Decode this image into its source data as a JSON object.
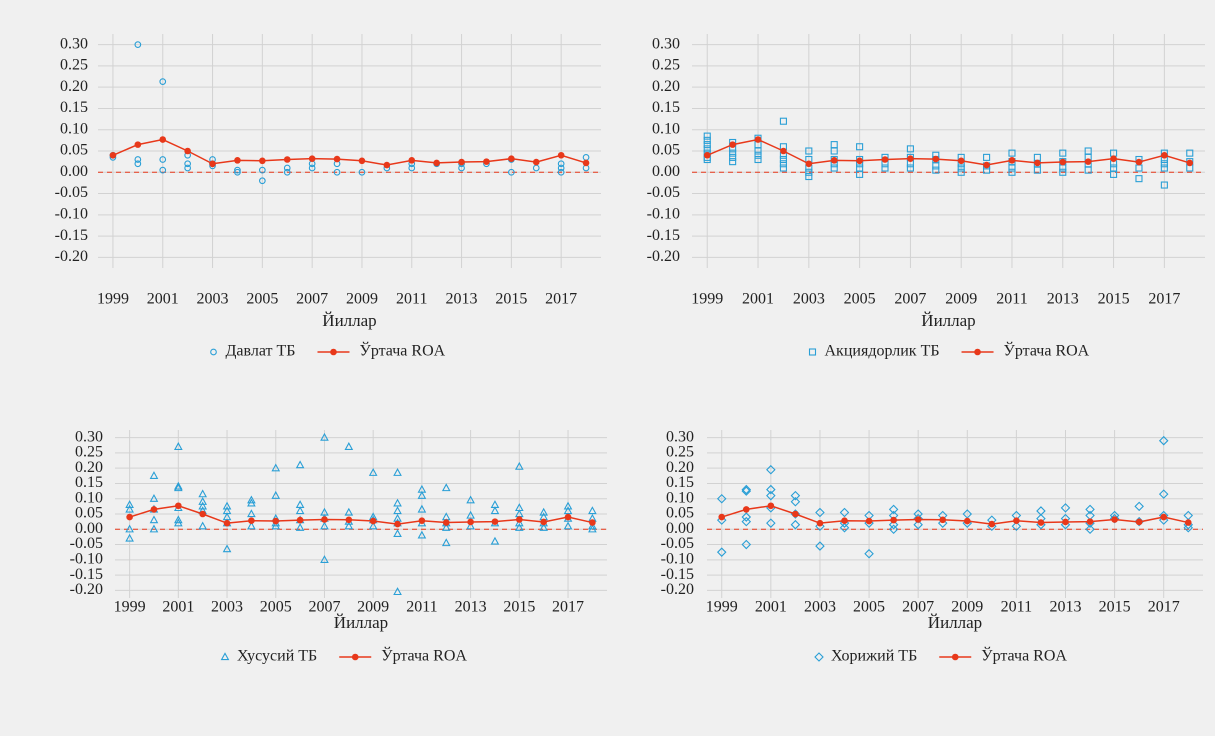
{
  "chart_data": [
    {
      "type": "scatter",
      "xlabel": "Йиллар",
      "legend": "bottom",
      "grid": true,
      "hline": 0,
      "xlim": [
        1998.4,
        2018.6
      ],
      "ylim": [
        -0.225,
        0.325
      ],
      "xticks": [
        1999,
        2001,
        2003,
        2005,
        2007,
        2009,
        2011,
        2013,
        2015,
        2017
      ],
      "yticks": [
        {
          "value": 0.3,
          "label": "0.30"
        },
        {
          "value": 0.25,
          "label": "0.25"
        },
        {
          "value": 0.2,
          "label": "0.20"
        },
        {
          "value": 0.15,
          "label": "0.15"
        },
        {
          "value": 0.1,
          "label": "0.10"
        },
        {
          "value": 0.05,
          "label": "0.05"
        },
        {
          "value": 0,
          "label": "0.00"
        },
        {
          "value": -0.05,
          "label": "-0.05"
        },
        {
          "value": -0.1,
          "label": "-0.10"
        },
        {
          "value": -0.15,
          "label": "-0.15"
        },
        {
          "value": -0.2,
          "label": "-0.20"
        }
      ],
      "series": [
        {
          "name": "Давлат ТБ",
          "type": "scatter",
          "marker": "circle",
          "color": "#2a9fd6",
          "x": [
            1999,
            1999,
            2000,
            2000,
            2000,
            2001,
            2001,
            2001,
            2002,
            2002,
            2002,
            2003,
            2003,
            2003,
            2004,
            2004,
            2005,
            2005,
            2006,
            2006,
            2007,
            2007,
            2008,
            2008,
            2009,
            2010,
            2011,
            2011,
            2012,
            2013,
            2013,
            2014,
            2015,
            2015,
            2016,
            2017,
            2017,
            2017,
            2018,
            2018
          ],
          "values": [
            0.035,
            0.04,
            0.3,
            0.03,
            0.02,
            0.213,
            0.03,
            0.005,
            0.04,
            0.02,
            0.01,
            0.03,
            0.02,
            0.015,
            0.005,
            0.0,
            0.005,
            -0.02,
            0.01,
            0.0,
            0.02,
            0.01,
            0.02,
            0.0,
            0.0,
            0.01,
            0.02,
            0.01,
            0.02,
            0.02,
            0.01,
            0.02,
            0.03,
            0.0,
            0.01,
            0.02,
            0.01,
            0.0,
            0.035,
            0.01
          ]
        },
        {
          "name": "Ўртача ROA",
          "type": "line",
          "color": "#e8381a",
          "x": [
            1999,
            2000,
            2001,
            2002,
            2003,
            2004,
            2005,
            2006,
            2007,
            2008,
            2009,
            2010,
            2011,
            2012,
            2013,
            2014,
            2015,
            2016,
            2017,
            2018
          ],
          "values": [
            0.04,
            0.065,
            0.077,
            0.05,
            0.02,
            0.028,
            0.027,
            0.03,
            0.032,
            0.031,
            0.027,
            0.017,
            0.028,
            0.022,
            0.024,
            0.025,
            0.032,
            0.024,
            0.04,
            0.022
          ]
        }
      ]
    },
    {
      "type": "scatter",
      "xlabel": "Йиллар",
      "legend": "bottom",
      "grid": true,
      "hline": 0,
      "xlim": [
        1998.4,
        2018.6
      ],
      "ylim": [
        -0.225,
        0.325
      ],
      "xticks": [
        1999,
        2001,
        2003,
        2005,
        2007,
        2009,
        2011,
        2013,
        2015,
        2017
      ],
      "yticks": [
        {
          "value": 0.3,
          "label": "0.30"
        },
        {
          "value": 0.25,
          "label": "0.25"
        },
        {
          "value": 0.2,
          "label": "0.20"
        },
        {
          "value": 0.15,
          "label": "0.15"
        },
        {
          "value": 0.1,
          "label": "0.10"
        },
        {
          "value": 0.05,
          "label": "0.05"
        },
        {
          "value": 0,
          "label": "0.00"
        },
        {
          "value": -0.05,
          "label": "-0.05"
        },
        {
          "value": -0.1,
          "label": "-0.10"
        },
        {
          "value": -0.15,
          "label": "-0.15"
        },
        {
          "value": -0.2,
          "label": "-0.20"
        }
      ],
      "series": [
        {
          "name": "Акциядорлик ТБ",
          "type": "scatter",
          "marker": "square",
          "color": "#2a9fd6",
          "x": [
            1999,
            1999,
            1999,
            1999,
            1999,
            1999,
            1999,
            2000,
            2000,
            2000,
            2000,
            2000,
            2001,
            2001,
            2001,
            2001,
            2001,
            2002,
            2002,
            2002,
            2002,
            2002,
            2002,
            2003,
            2003,
            2003,
            2003,
            2003,
            2004,
            2004,
            2004,
            2004,
            2004,
            2005,
            2005,
            2005,
            2005,
            2005,
            2006,
            2006,
            2006,
            2007,
            2007,
            2007,
            2007,
            2008,
            2008,
            2008,
            2008,
            2009,
            2009,
            2009,
            2009,
            2010,
            2010,
            2010,
            2011,
            2011,
            2011,
            2011,
            2012,
            2012,
            2012,
            2013,
            2013,
            2013,
            2013,
            2014,
            2014,
            2014,
            2014,
            2015,
            2015,
            2015,
            2015,
            2016,
            2016,
            2016,
            2017,
            2017,
            2017,
            2017,
            2017,
            2018,
            2018,
            2018
          ],
          "values": [
            0.085,
            0.075,
            0.065,
            0.055,
            0.045,
            0.035,
            0.03,
            0.07,
            0.055,
            0.045,
            0.035,
            0.025,
            0.08,
            0.065,
            0.05,
            0.04,
            0.03,
            0.12,
            0.06,
            0.04,
            0.03,
            0.02,
            0.01,
            0.05,
            0.03,
            0.01,
            0.0,
            -0.01,
            0.065,
            0.05,
            0.03,
            0.02,
            0.01,
            0.06,
            0.03,
            0.02,
            0.01,
            -0.005,
            0.035,
            0.02,
            0.01,
            0.055,
            0.035,
            0.02,
            0.01,
            0.04,
            0.03,
            0.015,
            0.005,
            0.035,
            0.02,
            0.01,
            0.0,
            0.035,
            0.015,
            0.005,
            0.045,
            0.025,
            0.01,
            0.0,
            0.035,
            0.02,
            0.005,
            0.045,
            0.025,
            0.01,
            0.0,
            0.05,
            0.035,
            0.02,
            0.005,
            0.045,
            0.02,
            0.01,
            -0.005,
            0.03,
            0.01,
            -0.015,
            0.045,
            0.03,
            0.02,
            0.01,
            -0.03,
            0.045,
            0.025,
            0.01
          ]
        },
        {
          "name": "Ўртача ROA",
          "type": "line",
          "color": "#e8381a",
          "x": [
            1999,
            2000,
            2001,
            2002,
            2003,
            2004,
            2005,
            2006,
            2007,
            2008,
            2009,
            2010,
            2011,
            2012,
            2013,
            2014,
            2015,
            2016,
            2017,
            2018
          ],
          "values": [
            0.04,
            0.065,
            0.077,
            0.05,
            0.02,
            0.028,
            0.027,
            0.03,
            0.032,
            0.031,
            0.027,
            0.017,
            0.028,
            0.022,
            0.024,
            0.025,
            0.032,
            0.024,
            0.04,
            0.022
          ]
        }
      ]
    },
    {
      "type": "scatter",
      "xlabel": "Йиллар",
      "legend": "bottom",
      "grid": true,
      "hline": 0,
      "xlim": [
        1998.4,
        2018.6
      ],
      "ylim": [
        -0.225,
        0.325
      ],
      "xticks": [
        1999,
        2001,
        2003,
        2005,
        2007,
        2009,
        2011,
        2013,
        2015,
        2017
      ],
      "yticks": [
        {
          "value": 0.3,
          "label": "0.30"
        },
        {
          "value": 0.25,
          "label": "0.25"
        },
        {
          "value": 0.2,
          "label": "0.20"
        },
        {
          "value": 0.15,
          "label": "0.15"
        },
        {
          "value": 0.1,
          "label": "0.10"
        },
        {
          "value": 0.05,
          "label": "0.05"
        },
        {
          "value": 0,
          "label": "0.00"
        },
        {
          "value": -0.05,
          "label": "-0.05"
        },
        {
          "value": -0.1,
          "label": "-0.10"
        },
        {
          "value": -0.15,
          "label": "-0.15"
        },
        {
          "value": -0.2,
          "label": "-0.20"
        }
      ],
      "series": [
        {
          "name": "Хусусий ТБ",
          "type": "scatter",
          "marker": "triangle",
          "color": "#2a9fd6",
          "x": [
            1999,
            1999,
            1999,
            1999,
            2000,
            2000,
            2000,
            2000,
            2000,
            2001,
            2001,
            2001,
            2001,
            2001,
            2001,
            2002,
            2002,
            2002,
            2002,
            2002,
            2003,
            2003,
            2003,
            2003,
            2003,
            2004,
            2004,
            2004,
            2004,
            2005,
            2005,
            2005,
            2005,
            2005,
            2006,
            2006,
            2006,
            2006,
            2006,
            2007,
            2007,
            2007,
            2007,
            2007,
            2008,
            2008,
            2008,
            2008,
            2009,
            2009,
            2009,
            2009,
            2010,
            2010,
            2010,
            2010,
            2010,
            2010,
            2010,
            2011,
            2011,
            2011,
            2011,
            2011,
            2012,
            2012,
            2012,
            2012,
            2012,
            2013,
            2013,
            2013,
            2014,
            2014,
            2014,
            2014,
            2015,
            2015,
            2015,
            2015,
            2015,
            2016,
            2016,
            2016,
            2016,
            2017,
            2017,
            2017,
            2017,
            2018,
            2018,
            2018,
            2018
          ],
          "values": [
            0.08,
            0.065,
            0.0,
            -0.03,
            0.175,
            0.1,
            0.065,
            0.03,
            0.0,
            0.27,
            0.14,
            0.135,
            0.07,
            0.03,
            0.02,
            0.115,
            0.09,
            0.075,
            0.06,
            0.01,
            0.075,
            0.06,
            0.04,
            0.02,
            -0.065,
            0.095,
            0.085,
            0.05,
            0.01,
            0.2,
            0.11,
            0.035,
            0.02,
            0.01,
            0.21,
            0.08,
            0.06,
            0.03,
            0.005,
            0.3,
            0.055,
            0.035,
            0.01,
            -0.1,
            0.27,
            0.055,
            0.025,
            0.01,
            0.185,
            0.04,
            0.03,
            0.01,
            0.185,
            0.085,
            0.06,
            0.035,
            0.02,
            -0.015,
            -0.205,
            0.13,
            0.11,
            0.065,
            0.02,
            -0.02,
            0.135,
            0.04,
            0.02,
            0.005,
            -0.045,
            0.095,
            0.045,
            0.01,
            0.08,
            0.06,
            0.02,
            -0.04,
            0.205,
            0.07,
            0.05,
            0.02,
            0.005,
            0.055,
            0.04,
            0.02,
            0.005,
            0.075,
            0.06,
            0.035,
            0.01,
            0.06,
            0.035,
            0.01,
            0.0
          ]
        },
        {
          "name": "Ўртача ROA",
          "type": "line",
          "color": "#e8381a",
          "x": [
            1999,
            2000,
            2001,
            2002,
            2003,
            2004,
            2005,
            2006,
            2007,
            2008,
            2009,
            2010,
            2011,
            2012,
            2013,
            2014,
            2015,
            2016,
            2017,
            2018
          ],
          "values": [
            0.04,
            0.065,
            0.077,
            0.05,
            0.02,
            0.028,
            0.027,
            0.03,
            0.032,
            0.031,
            0.027,
            0.017,
            0.028,
            0.022,
            0.024,
            0.025,
            0.032,
            0.024,
            0.04,
            0.022
          ]
        }
      ]
    },
    {
      "type": "scatter",
      "xlabel": "Йиллар",
      "legend": "bottom",
      "grid": true,
      "hline": 0,
      "xlim": [
        1998.4,
        2018.6
      ],
      "ylim": [
        -0.225,
        0.325
      ],
      "xticks": [
        1999,
        2001,
        2003,
        2005,
        2007,
        2009,
        2011,
        2013,
        2015,
        2017
      ],
      "yticks": [
        {
          "value": 0.3,
          "label": "0.30"
        },
        {
          "value": 0.25,
          "label": "0.25"
        },
        {
          "value": 0.2,
          "label": "0.20"
        },
        {
          "value": 0.15,
          "label": "0.15"
        },
        {
          "value": 0.1,
          "label": "0.10"
        },
        {
          "value": 0.05,
          "label": "0.05"
        },
        {
          "value": 0,
          "label": "0.00"
        },
        {
          "value": -0.05,
          "label": "-0.05"
        },
        {
          "value": -0.1,
          "label": "-0.10"
        },
        {
          "value": -0.15,
          "label": "-0.15"
        },
        {
          "value": -0.2,
          "label": "-0.20"
        }
      ],
      "series": [
        {
          "name": "Хорижий ТБ",
          "type": "scatter",
          "marker": "diamond",
          "color": "#2a9fd6",
          "x": [
            1999,
            1999,
            1999,
            2000,
            2000,
            2000,
            2000,
            2000,
            2001,
            2001,
            2001,
            2001,
            2001,
            2002,
            2002,
            2002,
            2002,
            2003,
            2003,
            2003,
            2004,
            2004,
            2004,
            2005,
            2005,
            2005,
            2006,
            2006,
            2006,
            2006,
            2007,
            2007,
            2007,
            2008,
            2008,
            2009,
            2009,
            2010,
            2010,
            2011,
            2011,
            2012,
            2012,
            2012,
            2013,
            2013,
            2013,
            2014,
            2014,
            2014,
            2014,
            2015,
            2015,
            2016,
            2016,
            2017,
            2017,
            2017,
            2017,
            2018,
            2018,
            2018
          ],
          "values": [
            0.1,
            0.03,
            -0.075,
            0.13,
            0.125,
            0.04,
            0.025,
            -0.05,
            0.195,
            0.13,
            0.11,
            0.07,
            0.02,
            0.11,
            0.09,
            0.05,
            0.015,
            0.055,
            0.01,
            -0.055,
            0.055,
            0.02,
            0.005,
            0.045,
            0.02,
            -0.08,
            0.065,
            0.045,
            0.015,
            0.0,
            0.05,
            0.035,
            0.015,
            0.045,
            0.02,
            0.05,
            0.02,
            0.03,
            0.01,
            0.045,
            0.01,
            0.06,
            0.035,
            0.015,
            0.07,
            0.035,
            0.015,
            0.065,
            0.045,
            0.02,
            0.0,
            0.045,
            0.035,
            0.075,
            0.025,
            0.29,
            0.115,
            0.045,
            0.03,
            0.045,
            0.015,
            0.005
          ]
        },
        {
          "name": "Ўртача ROA",
          "type": "line",
          "color": "#e8381a",
          "x": [
            1999,
            2000,
            2001,
            2002,
            2003,
            2004,
            2005,
            2006,
            2007,
            2008,
            2009,
            2010,
            2011,
            2012,
            2013,
            2014,
            2015,
            2016,
            2017,
            2018
          ],
          "values": [
            0.04,
            0.065,
            0.077,
            0.05,
            0.02,
            0.028,
            0.027,
            0.03,
            0.032,
            0.031,
            0.027,
            0.017,
            0.028,
            0.022,
            0.024,
            0.025,
            0.032,
            0.024,
            0.04,
            0.022
          ]
        }
      ]
    }
  ]
}
